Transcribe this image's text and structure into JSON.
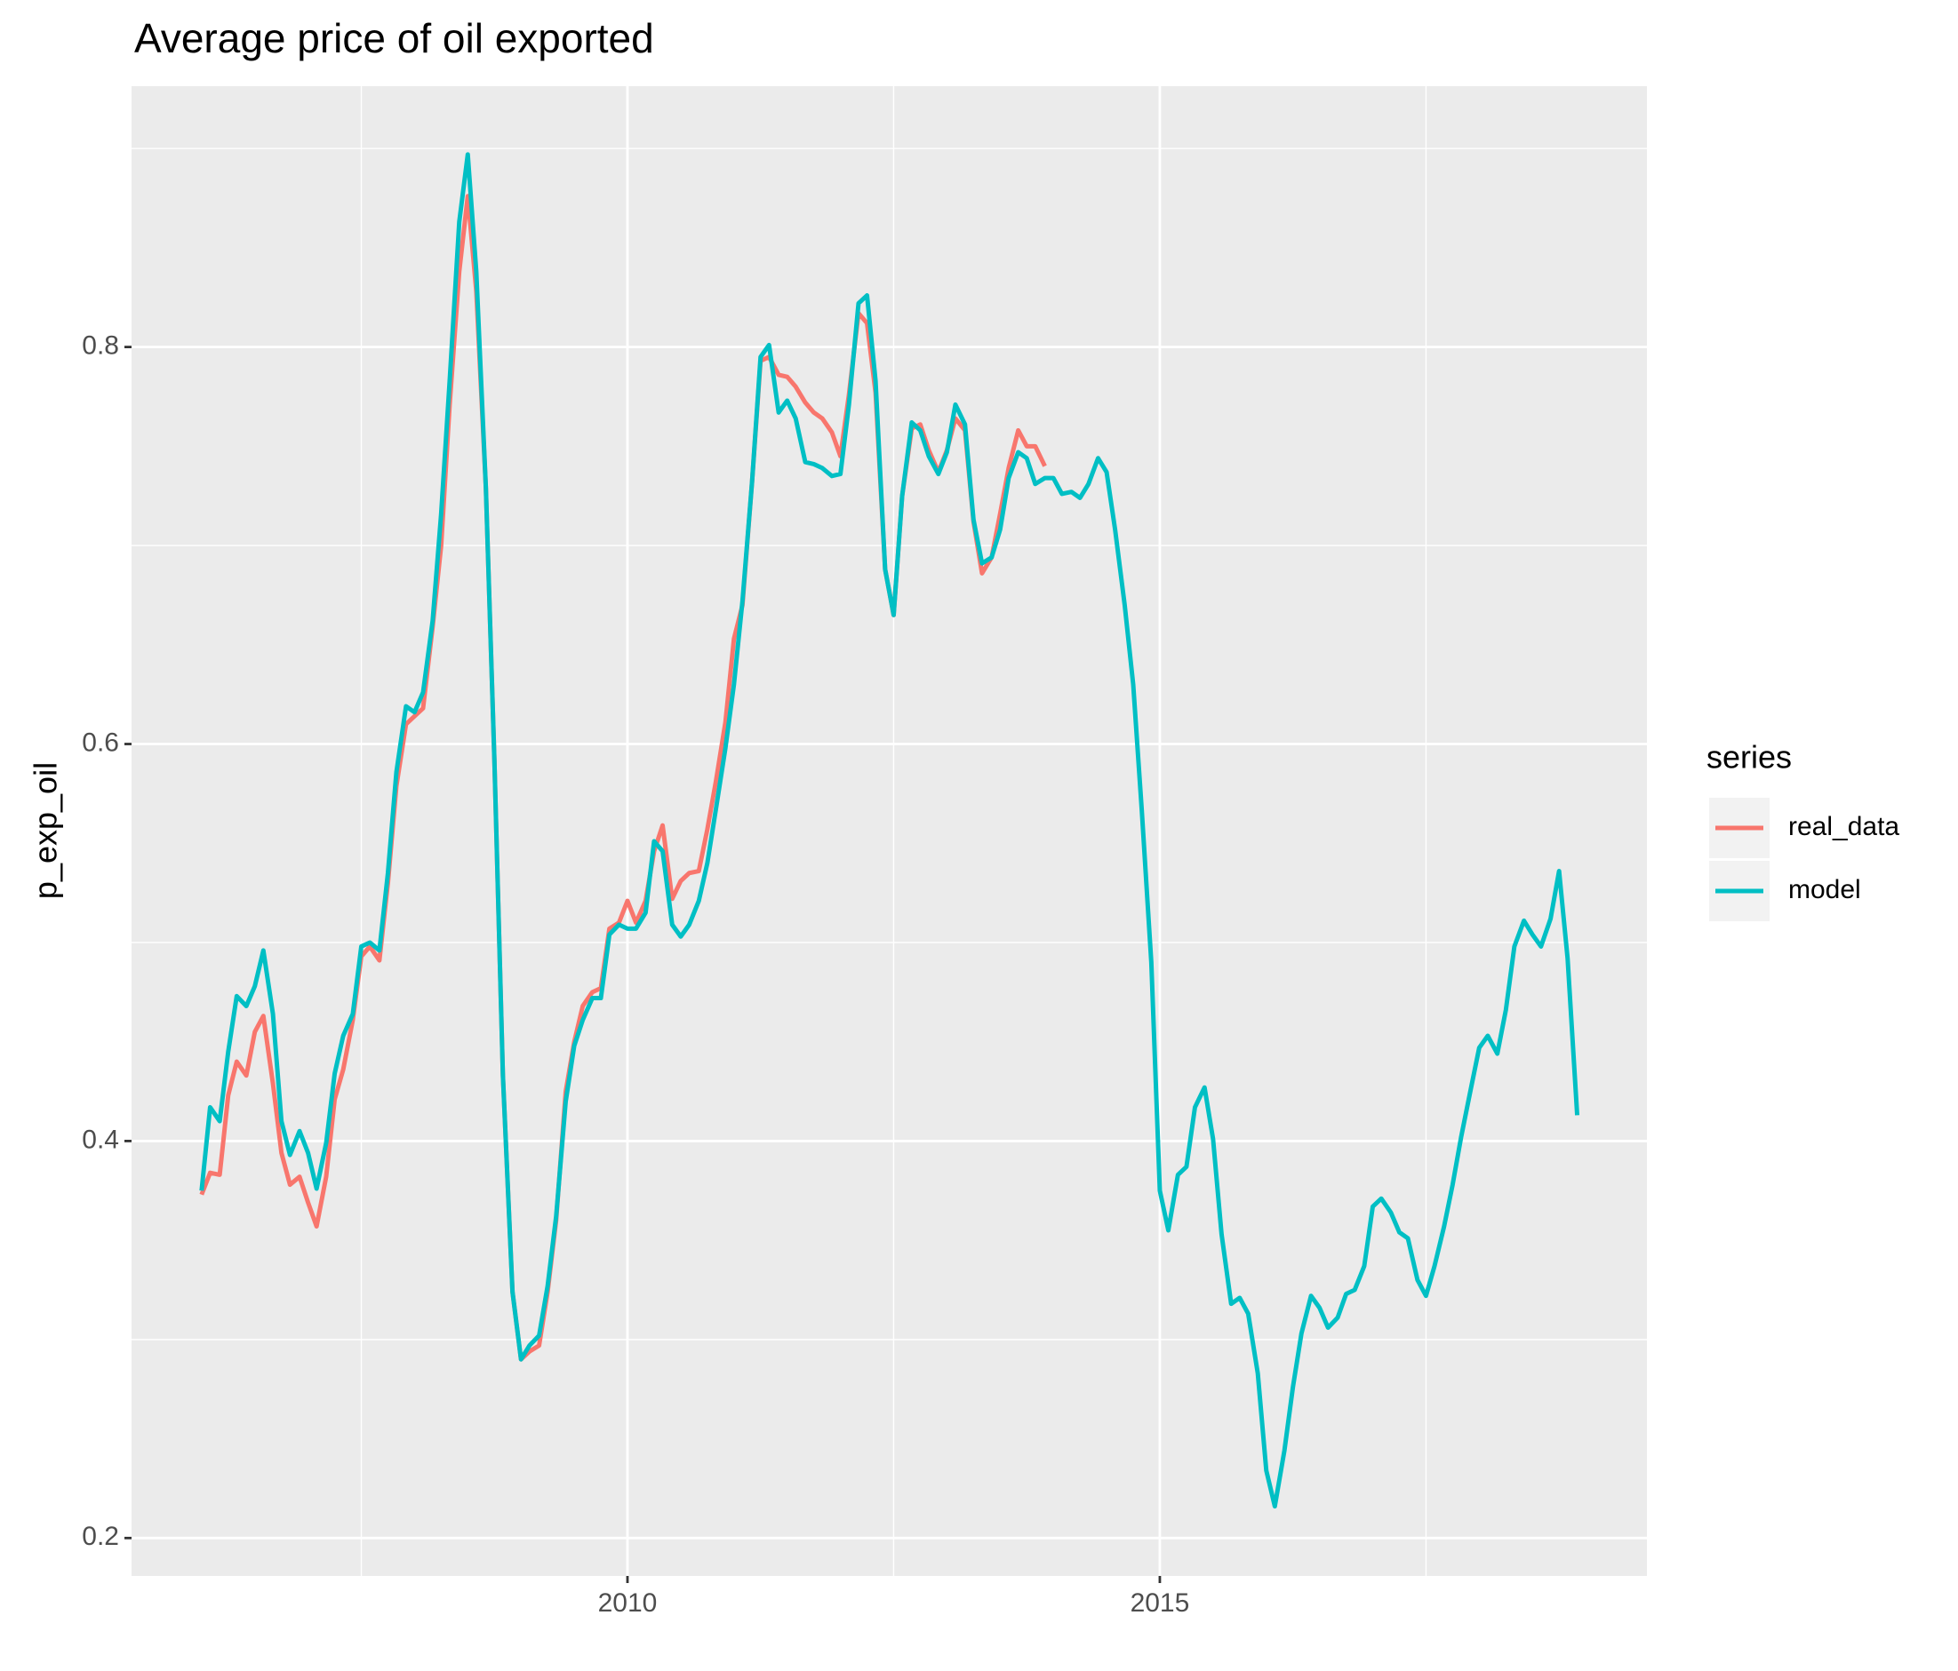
{
  "chart_data": {
    "type": "line",
    "title": "Average price of oil exported",
    "y_label": "p_exp_oil",
    "legend_title": "series",
    "legend_position": "right",
    "grid": true,
    "x": [
      2006.0,
      2006.08,
      2006.17,
      2006.25,
      2006.33,
      2006.42,
      2006.5,
      2006.58,
      2006.67,
      2006.75,
      2006.83,
      2006.92,
      2007.0,
      2007.08,
      2007.17,
      2007.25,
      2007.33,
      2007.42,
      2007.5,
      2007.58,
      2007.67,
      2007.75,
      2007.83,
      2007.92,
      2008.0,
      2008.08,
      2008.17,
      2008.25,
      2008.33,
      2008.42,
      2008.5,
      2008.58,
      2008.67,
      2008.75,
      2008.83,
      2008.92,
      2009.0,
      2009.08,
      2009.17,
      2009.25,
      2009.33,
      2009.42,
      2009.5,
      2009.58,
      2009.67,
      2009.75,
      2009.83,
      2009.92,
      2010.0,
      2010.08,
      2010.17,
      2010.25,
      2010.33,
      2010.42,
      2010.5,
      2010.58,
      2010.67,
      2010.75,
      2010.83,
      2010.92,
      2011.0,
      2011.08,
      2011.17,
      2011.25,
      2011.33,
      2011.42,
      2011.5,
      2011.58,
      2011.67,
      2011.75,
      2011.83,
      2011.92,
      2012.0,
      2012.08,
      2012.17,
      2012.25,
      2012.33,
      2012.42,
      2012.5,
      2012.58,
      2012.67,
      2012.75,
      2012.83,
      2012.92,
      2013.0,
      2013.08,
      2013.17,
      2013.25,
      2013.33,
      2013.42,
      2013.5,
      2013.58,
      2013.67,
      2013.75,
      2013.83,
      2013.92,
      2014.0,
      2014.08,
      2014.17,
      2014.25,
      2014.33,
      2014.42,
      2014.5,
      2014.58,
      2014.67,
      2014.75,
      2014.83,
      2014.92,
      2015.0,
      2015.08,
      2015.17,
      2015.25,
      2015.33,
      2015.42,
      2015.5,
      2015.58,
      2015.67,
      2015.75,
      2015.83,
      2015.92,
      2016.0,
      2016.08,
      2016.17,
      2016.25,
      2016.33,
      2016.42,
      2016.5,
      2016.58,
      2016.67,
      2016.75,
      2016.83,
      2016.92,
      2017.0,
      2017.08,
      2017.17,
      2017.25,
      2017.33,
      2017.42,
      2017.5,
      2017.58,
      2017.67,
      2017.75,
      2017.83,
      2017.92,
      2018.0,
      2018.08,
      2018.17,
      2018.25,
      2018.33,
      2018.42,
      2018.5,
      2018.58,
      2018.67,
      2018.75,
      2018.83,
      2018.92
    ],
    "series": [
      {
        "name": "real_data",
        "color": "#F8766D",
        "values": [
          0.373,
          0.384,
          0.383,
          0.423,
          0.44,
          0.433,
          0.455,
          0.463,
          0.429,
          0.394,
          0.378,
          0.382,
          0.369,
          0.357,
          0.382,
          0.421,
          0.436,
          0.461,
          0.493,
          0.498,
          0.491,
          0.53,
          0.579,
          0.61,
          0.614,
          0.618,
          0.659,
          0.7,
          0.771,
          0.838,
          0.876,
          0.828,
          0.729,
          0.592,
          0.433,
          0.324,
          0.29,
          0.294,
          0.297,
          0.324,
          0.36,
          0.425,
          0.45,
          0.468,
          0.475,
          0.477,
          0.507,
          0.51,
          0.521,
          0.51,
          0.521,
          0.546,
          0.559,
          0.522,
          0.531,
          0.535,
          0.536,
          0.557,
          0.581,
          0.611,
          0.653,
          0.67,
          0.732,
          0.793,
          0.795,
          0.786,
          0.785,
          0.78,
          0.772,
          0.767,
          0.764,
          0.757,
          0.745,
          0.776,
          0.817,
          0.812,
          0.777,
          0.688,
          0.665,
          0.725,
          0.759,
          0.761,
          0.748,
          0.737,
          0.748,
          0.764,
          0.758,
          0.712,
          0.686,
          0.694,
          0.716,
          0.739,
          0.758,
          0.75,
          0.75,
          0.74,
          null,
          null,
          null,
          null,
          null,
          null,
          null,
          null,
          null,
          null,
          null,
          null,
          null,
          null,
          null,
          null,
          null,
          null,
          null,
          null,
          null,
          null,
          null,
          null,
          null,
          null,
          null,
          null,
          null,
          null,
          null,
          null,
          null,
          null,
          null,
          null,
          null,
          null,
          null,
          null,
          null,
          null,
          null,
          null,
          null,
          null,
          null,
          null,
          null,
          null,
          null,
          null,
          null,
          null,
          null,
          null,
          null,
          null,
          null,
          null
        ]
      },
      {
        "name": "model",
        "color": "#00BFC4",
        "values": [
          0.375,
          0.417,
          0.41,
          0.445,
          0.473,
          0.468,
          0.478,
          0.496,
          0.464,
          0.41,
          0.393,
          0.405,
          0.394,
          0.376,
          0.399,
          0.434,
          0.453,
          0.464,
          0.498,
          0.5,
          0.496,
          0.535,
          0.586,
          0.619,
          0.616,
          0.626,
          0.662,
          0.716,
          0.783,
          0.863,
          0.897,
          0.838,
          0.729,
          0.592,
          0.433,
          0.324,
          0.29,
          0.297,
          0.302,
          0.327,
          0.362,
          0.42,
          0.448,
          0.461,
          0.472,
          0.472,
          0.504,
          0.509,
          0.507,
          0.507,
          0.515,
          0.551,
          0.546,
          0.509,
          0.503,
          0.509,
          0.521,
          0.54,
          0.567,
          0.598,
          0.63,
          0.672,
          0.732,
          0.795,
          0.801,
          0.767,
          0.773,
          0.764,
          0.742,
          0.741,
          0.739,
          0.735,
          0.736,
          0.771,
          0.822,
          0.826,
          0.783,
          0.688,
          0.665,
          0.725,
          0.762,
          0.758,
          0.745,
          0.736,
          0.747,
          0.771,
          0.761,
          0.713,
          0.691,
          0.694,
          0.708,
          0.734,
          0.747,
          0.744,
          0.731,
          0.734,
          0.734,
          0.726,
          0.727,
          0.724,
          0.731,
          0.744,
          0.737,
          0.708,
          0.67,
          0.63,
          0.567,
          0.49,
          0.375,
          0.355,
          0.383,
          0.387,
          0.417,
          0.427,
          0.401,
          0.353,
          0.318,
          0.321,
          0.313,
          0.283,
          0.234,
          0.216,
          0.244,
          0.276,
          0.303,
          0.322,
          0.316,
          0.306,
          0.311,
          0.323,
          0.325,
          0.337,
          0.367,
          0.371,
          0.364,
          0.354,
          0.351,
          0.33,
          0.322,
          0.337,
          0.357,
          0.378,
          0.402,
          0.426,
          0.447,
          0.453,
          0.444,
          0.466,
          0.498,
          0.511,
          0.504,
          0.498,
          0.512,
          0.536,
          0.492,
          0.413
        ]
      }
    ],
    "xlim": [
      2005.342,
      2019.575
    ],
    "xticks": [
      2010,
      2015
    ],
    "ylim": [
      0.1809,
      0.9314
    ],
    "yticks": [
      0.2,
      0.4,
      0.6,
      0.8
    ]
  }
}
